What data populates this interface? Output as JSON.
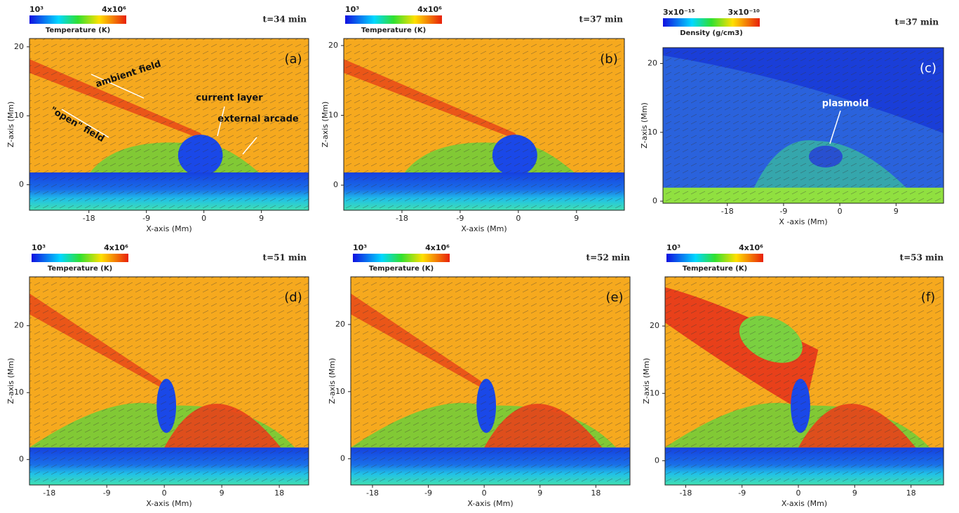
{
  "panels": [
    {
      "label": "(a)",
      "time": "t=34 min",
      "colorbar": {
        "min": "10³",
        "max": "4x10⁶",
        "title": "Temperature (K)"
      },
      "x_label": "X-axis (Mm)",
      "y_label": "Z-axis (Mm)",
      "xlim": [
        -27.3,
        16.4
      ],
      "ylim": [
        -3.7,
        21.2
      ],
      "xticks": [
        -18,
        -9,
        0,
        9
      ],
      "yticks": [
        0,
        10,
        20
      ],
      "annotations": [
        "ambient field",
        "current layer",
        "external arcade",
        "\"open\" field"
      ]
    },
    {
      "label": "(b)",
      "time": "t=37 min",
      "colorbar": {
        "min": "10³",
        "max": "4x10⁶",
        "title": "Temperature (K)"
      },
      "x_label": "X-axis (Mm)",
      "y_label": "Z-axis (Mm)",
      "xlim": [
        -27,
        16.4
      ],
      "ylim": [
        -3.6,
        21
      ],
      "xticks": [
        -18,
        -9,
        0,
        9
      ],
      "yticks": [
        0,
        10,
        20
      ],
      "annotations": []
    },
    {
      "label": "(c)",
      "time": "t=37 min",
      "colorbar": {
        "min": "3x10⁻¹⁵",
        "max": "3x10⁻¹⁰",
        "title": "Density (g/cm3)"
      },
      "x_label": "X -axis (Mm)",
      "y_label": "Z-axis (Mm)",
      "xlim": [
        -28.3,
        16.6
      ],
      "ylim": [
        -0.3,
        22.3
      ],
      "xticks": [
        -18,
        -9,
        0,
        9
      ],
      "yticks": [
        0,
        10,
        20
      ],
      "annotations": [
        "plasmoid"
      ]
    },
    {
      "label": "(d)",
      "time": "t=51 min",
      "colorbar": {
        "min": "10³",
        "max": "4x10⁶",
        "title": "Temperature (K)"
      },
      "x_label": "X-axis (Mm)",
      "y_label": "Z-axis (Mm)",
      "xlim": [
        -21.1,
        22.6
      ],
      "ylim": [
        -3.8,
        27.3
      ],
      "xticks": [
        -18,
        -9,
        0,
        9,
        18
      ],
      "yticks": [
        0,
        10,
        20
      ],
      "annotations": []
    },
    {
      "label": "(e)",
      "time": "t=52 min",
      "colorbar": {
        "min": "10³",
        "max": "4x10⁶",
        "title": "Temperature (K)"
      },
      "x_label": "X-axis (Mm)",
      "y_label": "Z-axis (Mm)",
      "xlim": [
        -21.5,
        23.5
      ],
      "ylim": [
        -3.9,
        27.1
      ],
      "xticks": [
        -18,
        -9,
        0,
        9,
        18
      ],
      "yticks": [
        0,
        10,
        20
      ],
      "annotations": []
    },
    {
      "label": "(f)",
      "time": "t=53 min",
      "colorbar": {
        "min": "10³",
        "max": "4x10⁶",
        "title": "Temperature (K)"
      },
      "x_label": "X-axis (Mm)",
      "y_label": "Z-axis (Mm)",
      "xlim": [
        -21.3,
        23.2
      ],
      "ylim": [
        -3.6,
        27.3
      ],
      "xticks": [
        -18,
        -9,
        0,
        9,
        18
      ],
      "yticks": [
        0,
        10,
        20
      ],
      "annotations": []
    }
  ]
}
